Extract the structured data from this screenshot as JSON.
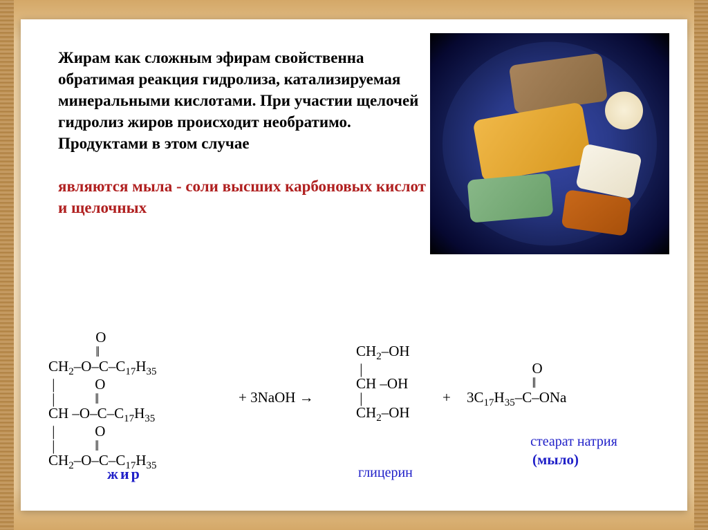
{
  "slide": {
    "paragraph_black": "Жирам как сложным эфирам свойственна обратимая реакция гидролиза, катализируемая минеральными кислотами. При участии щелочей гидролиз жиров происходит необратимо. Продуктами в этом случае",
    "paragraph_red": "являются мыла - соли высших карбоновых кислот и щелочных"
  },
  "photo": {
    "bg_gradient_inner": "#2a3a8a",
    "bg_gradient_outer": "#060830",
    "soaps": [
      {
        "color": "#a8845c"
      },
      {
        "color": "#f0b848"
      },
      {
        "color": "#88b888"
      },
      {
        "color": "#f8f0d8"
      },
      {
        "color": "#f8f4e8"
      },
      {
        "color": "#c8681a"
      }
    ]
  },
  "formula": {
    "fat_lines": "             O\n             ‖\nCH₂–O–C–C₁₇H₃₅\n |           O\n |           ‖\nCH –O–C–C₁₇H₃₅\n |           O\n |           ‖\nCH₂–O–C–C₁₇H₃₅",
    "reagent": "+ 3NaOH →",
    "glycerol_lines": "CH₂–OH\n |\nCH –OH\n |\nCH₂–OH",
    "plus2": "+",
    "product_top": "                  O\n                  ‖\n3C₁₇H₃₅–C–ONa",
    "label_fat": "жир",
    "label_glycerol": "глицерин",
    "label_stearate": "стеарат натрия",
    "label_soap": "(мыло)",
    "label_color": "#2020c8",
    "text_color": "#000000"
  },
  "styling": {
    "panel_bg": "#ffffff",
    "body_bg_top": "#d4a868",
    "body_bg_mid": "#f2dcb8",
    "font_body": "Georgia, 'Times New Roman', serif",
    "font_formula": "'Times New Roman', serif",
    "text_size_pt": 17,
    "formula_size_pt": 16,
    "red_color": "#b02020"
  }
}
